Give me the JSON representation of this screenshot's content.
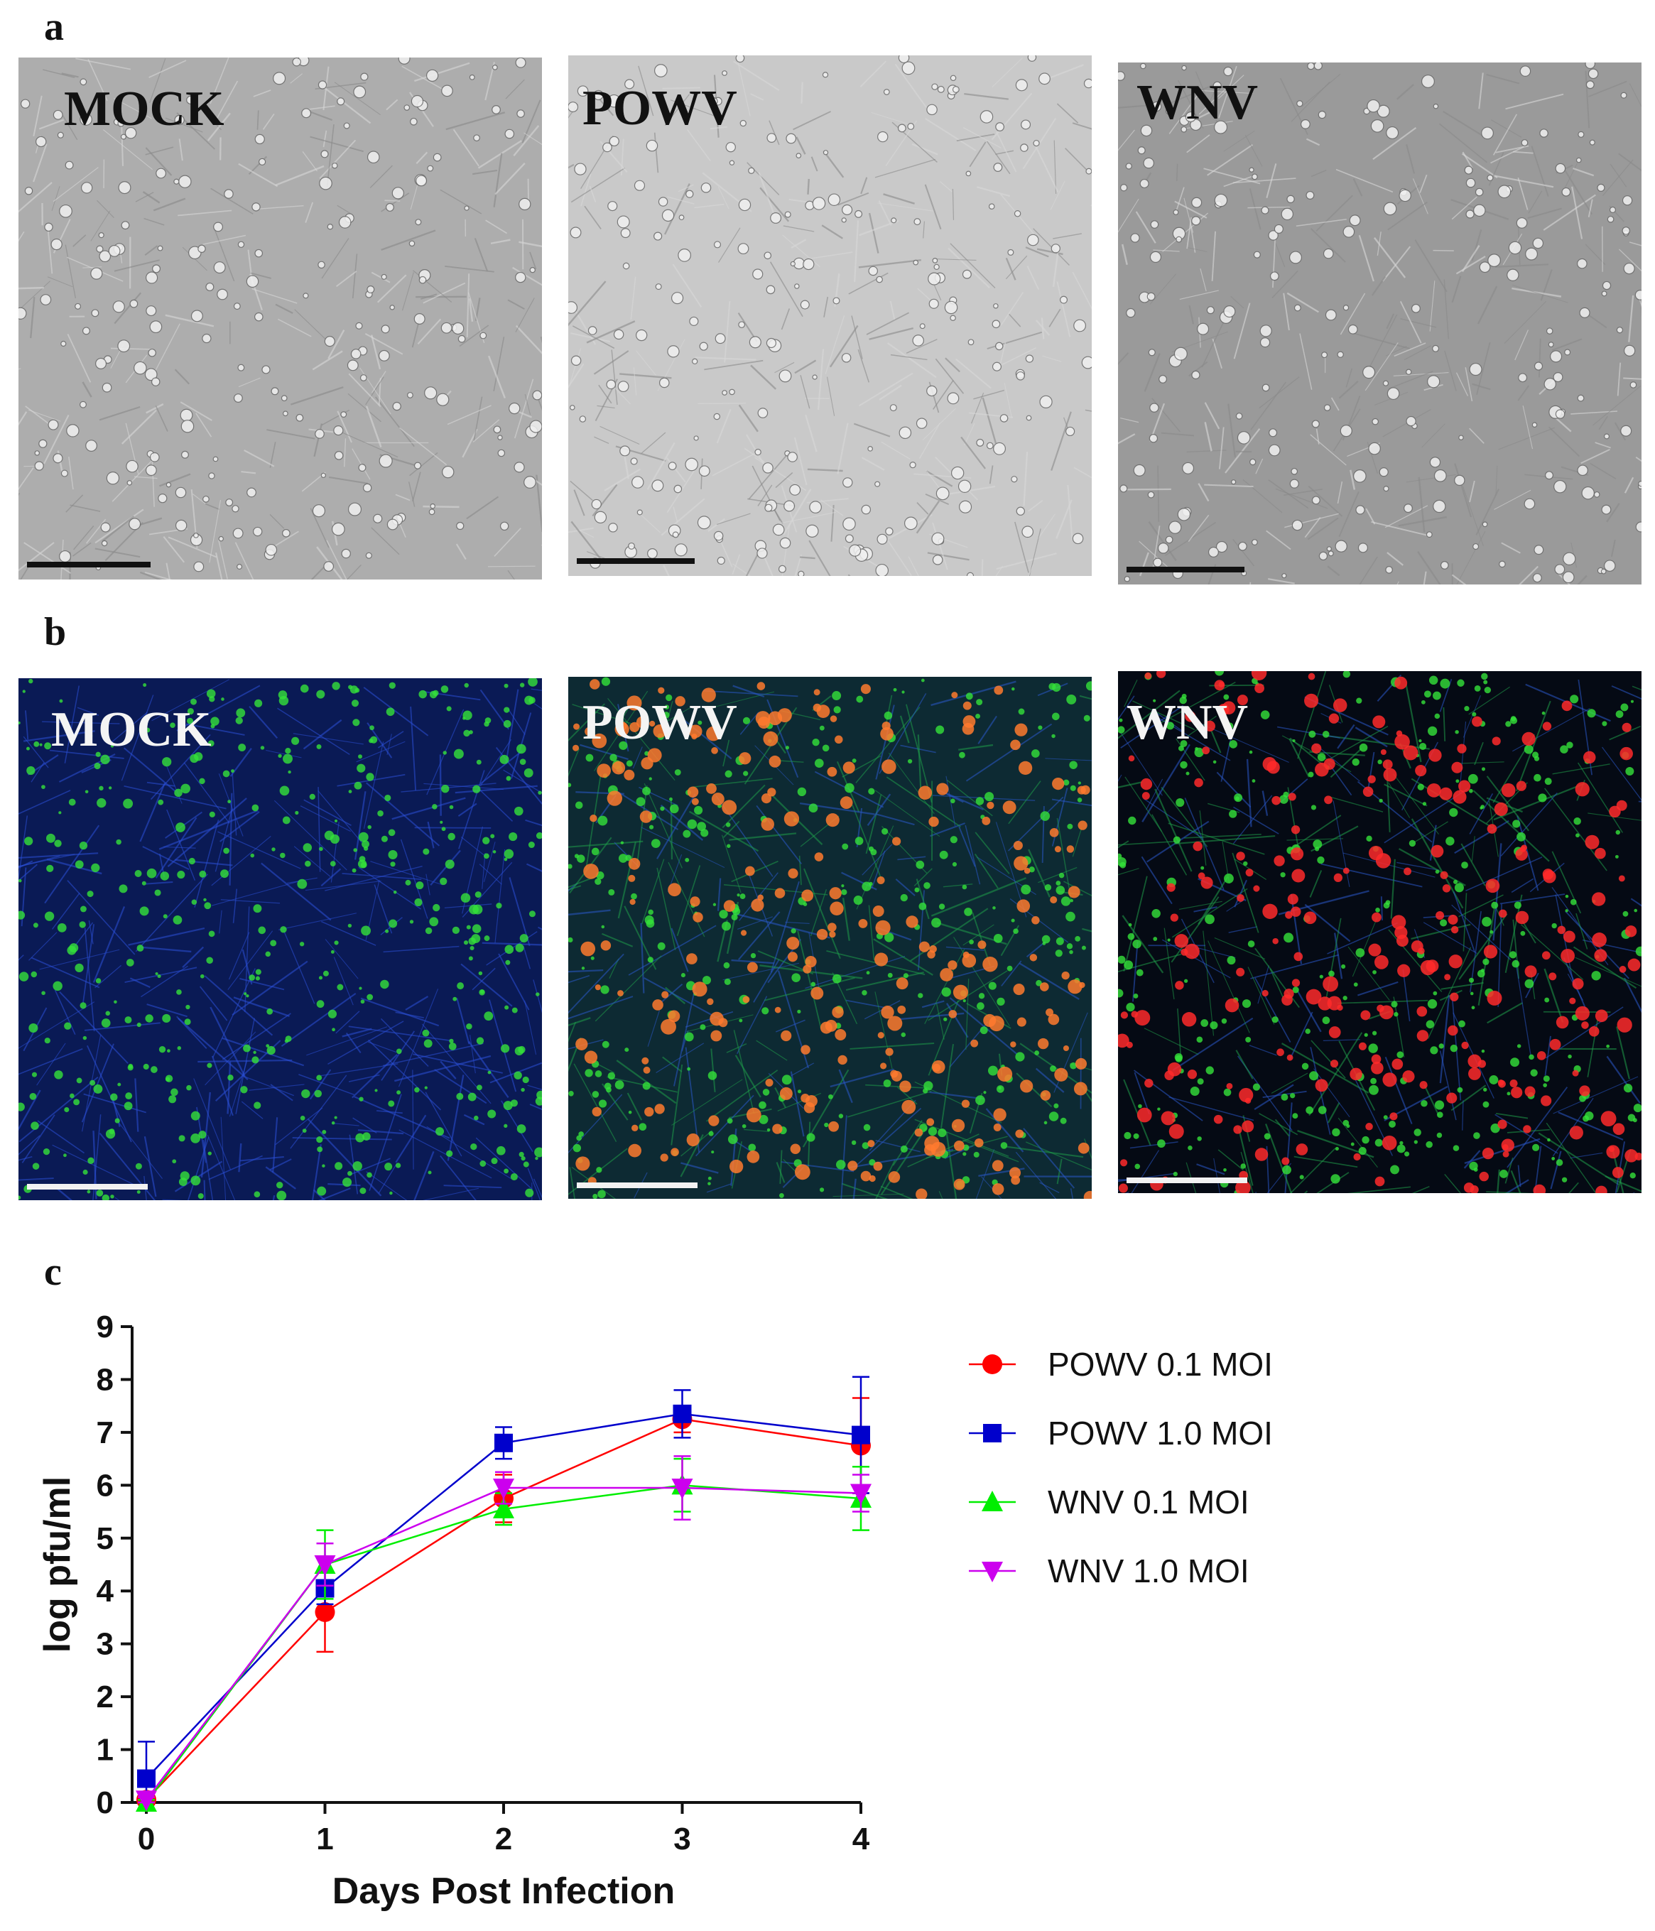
{
  "panels": {
    "a": {
      "letter": "a",
      "images": [
        {
          "label": "MOCK",
          "kind": "phase"
        },
        {
          "label": "POWV",
          "kind": "phase"
        },
        {
          "label": "WNV",
          "kind": "phase"
        }
      ]
    },
    "b": {
      "letter": "b",
      "images": [
        {
          "label": "MOCK",
          "kind": "fluor-mock"
        },
        {
          "label": "POWV",
          "kind": "fluor-powv"
        },
        {
          "label": "WNV",
          "kind": "fluor-wnv"
        }
      ]
    },
    "c": {
      "letter": "c"
    }
  },
  "chart_data": {
    "type": "line",
    "xlabel": "Days Post Infection",
    "ylabel": "log pfu/ml",
    "xlim": [
      0,
      4
    ],
    "ylim": [
      0,
      9
    ],
    "x_ticks": [
      0,
      1,
      2,
      3,
      4
    ],
    "y_ticks": [
      0,
      1,
      2,
      3,
      4,
      5,
      6,
      7,
      8,
      9
    ],
    "x": [
      0,
      1,
      2,
      3,
      4
    ],
    "legend_position": "right",
    "series": [
      {
        "name": "POWV 0.1 MOI",
        "color": "#ff0000",
        "marker": "circle",
        "values": [
          0.05,
          3.6,
          5.75,
          7.25,
          6.75
        ],
        "err": [
          0.05,
          0.75,
          0.45,
          0.25,
          0.9
        ]
      },
      {
        "name": "POWV 1.0 MOI",
        "color": "#0000cc",
        "marker": "square",
        "values": [
          0.45,
          4.05,
          6.8,
          7.35,
          6.95
        ],
        "err": [
          0.7,
          0.3,
          0.3,
          0.45,
          1.1
        ]
      },
      {
        "name": "WNV 0.1 MOI",
        "color": "#00ee00",
        "marker": "triangle-up",
        "values": [
          0.0,
          4.5,
          5.55,
          6.0,
          5.75
        ],
        "err": [
          0.05,
          0.65,
          0.3,
          0.5,
          0.6
        ]
      },
      {
        "name": "WNV 1.0 MOI",
        "color": "#cc00ee",
        "marker": "triangle-down",
        "values": [
          0.05,
          4.5,
          5.95,
          5.95,
          5.85
        ],
        "err": [
          0.05,
          0.4,
          0.3,
          0.6,
          0.35
        ]
      }
    ]
  }
}
